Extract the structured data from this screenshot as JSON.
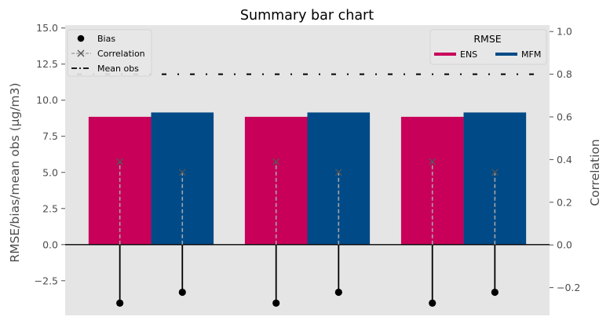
{
  "chart_data": {
    "type": "bar",
    "title": "Summary bar chart",
    "ylabel_left": "RMSE/bias/mean obs (µg/m3)",
    "ylabel_right": "Correlation",
    "xlabel": "",
    "ylim_left": [
      -4.9,
      15.2
    ],
    "ylim_right": [
      -0.33,
      1.03
    ],
    "yticks_left": [
      -2.5,
      0.0,
      2.5,
      5.0,
      7.5,
      10.0,
      12.5,
      15.0
    ],
    "yticks_left_labels": [
      "−2.5",
      "0.0",
      "2.5",
      "5.0",
      "7.5",
      "10.0",
      "12.5",
      "15.0"
    ],
    "yticks_right": [
      -0.2,
      0.0,
      0.2,
      0.4,
      0.6,
      0.8,
      1.0
    ],
    "yticks_right_labels": [
      "−0.2",
      "0.0",
      "0.2",
      "0.4",
      "0.6",
      "0.8",
      "1.0"
    ],
    "grid": false,
    "groups": 3,
    "rmse_legend": {
      "title": "RMSE",
      "placement": "top-right",
      "entries": [
        "ENS",
        "MFM"
      ]
    },
    "marker_legend": {
      "placement": "top-left",
      "entries": [
        "Bias",
        "Correlation",
        "Mean obs"
      ]
    },
    "series": [
      {
        "name": "ENS",
        "color": "#c8005a",
        "rmse": [
          8.85,
          8.85,
          8.85
        ],
        "bias": [
          -4.05,
          -4.05,
          -4.05
        ],
        "correlation": [
          0.39,
          0.39,
          0.39
        ]
      },
      {
        "name": "MFM",
        "color": "#004a87",
        "rmse": [
          9.15,
          9.15,
          9.15
        ],
        "bias": [
          -3.3,
          -3.3,
          -3.3
        ],
        "correlation": [
          0.34,
          0.34,
          0.34
        ]
      }
    ],
    "mean_obs": 11.8,
    "colors": {
      "background": "#e5e5e5",
      "bias_stem": "#000000",
      "correlation_line": "#a6a6a6",
      "correlation_marker": "#555555",
      "zero_line": "#000000"
    }
  }
}
